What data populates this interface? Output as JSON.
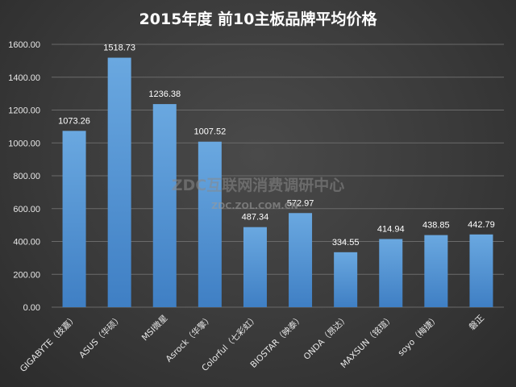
{
  "chart_data": {
    "type": "bar",
    "title": "2015年度 前10主板品牌平均价格",
    "categories": [
      "GIGABYTE（技嘉）",
      "ASUS（华硕）",
      "MSI微星",
      "Asrock（华擎）",
      "Colorful（七彩虹）",
      "BIOSTAR（映泰）",
      "ONDA（昂达）",
      "MAXSUN（铭瑄）",
      "soyo（梅捷）",
      "磐正"
    ],
    "values": [
      1073.26,
      1518.73,
      1236.38,
      1007.52,
      487.34,
      572.97,
      334.55,
      414.94,
      438.85,
      442.79
    ],
    "value_labels": [
      "1073.26",
      "1518.73",
      "1236.38",
      "1007.52",
      "487.34",
      "572.97",
      "334.55",
      "414.94",
      "438.85",
      "442.79"
    ],
    "ylim": [
      0,
      1600
    ],
    "yticks": [
      "0.00",
      "200.00",
      "400.00",
      "600.00",
      "800.00",
      "1000.00",
      "1200.00",
      "1400.00",
      "1600.00"
    ],
    "grid": true,
    "legend": "none",
    "bar_color": "#5b9bd5",
    "xlabel": "",
    "ylabel": ""
  },
  "watermark": {
    "line1": "ZDC互联网消费调研中心",
    "line2": "ZDC.ZOL.COM.CN"
  }
}
